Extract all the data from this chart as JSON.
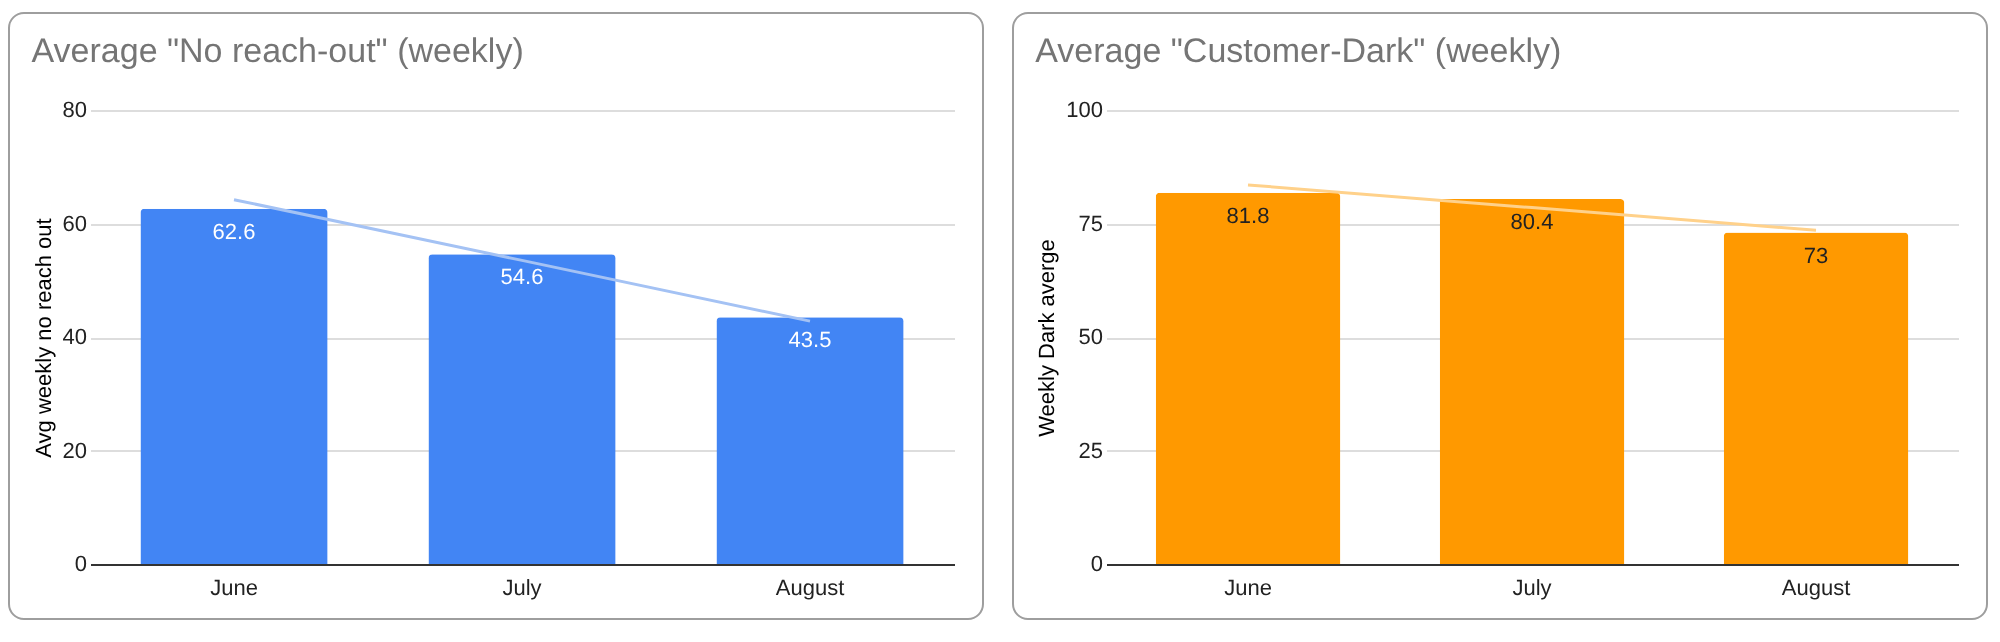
{
  "chart_data": [
    {
      "type": "bar",
      "title": "Average \"No reach-out\" (weekly)",
      "ylabel": "Avg weekly no reach out",
      "categories": [
        "June",
        "July",
        "August"
      ],
      "ylim": [
        0,
        80
      ],
      "yticks": [
        0,
        20,
        40,
        60,
        80
      ],
      "grid": "y",
      "series": [
        {
          "color": "#4285f4",
          "values": [
            62.6,
            54.6,
            43.5
          ],
          "value_labels": [
            "62.6",
            "54.6",
            "43.5"
          ]
        },
        {
          "type": "line",
          "color": "#a4c2f4",
          "values": [
            64.2,
            53.5,
            42.8
          ]
        }
      ]
    },
    {
      "type": "bar",
      "title": "Average \"Customer-Dark\" (weekly)",
      "ylabel": "Weekly Dark averge",
      "categories": [
        "June",
        "July",
        "August"
      ],
      "ylim": [
        0,
        100
      ],
      "yticks": [
        0,
        25,
        50,
        75,
        100
      ],
      "grid": "y",
      "series": [
        {
          "color": "#ff9900",
          "values": [
            81.8,
            80.4,
            73
          ],
          "value_labels": [
            "81.8",
            "80.4",
            "73"
          ]
        },
        {
          "type": "line",
          "color": "#ffd18a",
          "values": [
            83.5,
            78.5,
            73.5
          ]
        }
      ]
    }
  ]
}
